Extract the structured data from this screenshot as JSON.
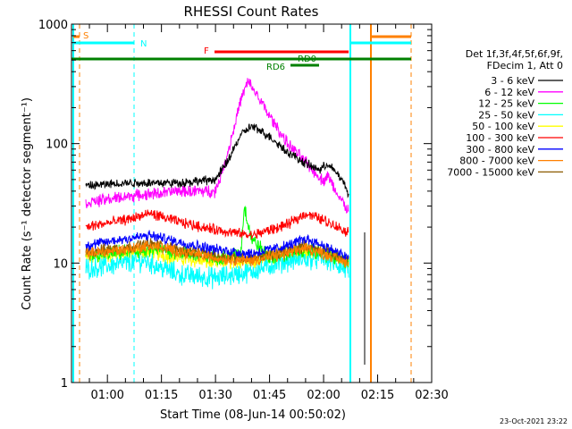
{
  "chart_data": {
    "type": "line",
    "title": "RHESSI Count Rates",
    "xlabel": "Start Time (08-Jun-14 00:50:02)",
    "ylabel": "Count Rate (s⁻¹ detector segment⁻¹)",
    "yscale": "log",
    "ylim": [
      1,
      1000
    ],
    "xlim_minutes": [
      0,
      100
    ],
    "x_tick_labels": [
      "01:00",
      "01:15",
      "01:30",
      "01:45",
      "02:00",
      "02:15",
      "02:30"
    ],
    "y_tick_labels": [
      "1",
      "10",
      "100",
      "1000"
    ],
    "legend_header": [
      "Det 1f,3f,4f,5f,6f,9f,",
      "FDecim 1, Att 0"
    ],
    "legend_placement": "right",
    "timestamp": "23-Oct-2021 23:22",
    "series": [
      {
        "name": "3 - 6 keV",
        "color": "#000000",
        "x": [
          "00:54",
          "01:05",
          "01:20",
          "01:30",
          "01:33",
          "01:37",
          "01:40",
          "01:45",
          "01:50",
          "01:55",
          "01:59",
          "02:01",
          "02:04",
          "02:06",
          "02:07"
        ],
        "y": [
          44,
          47,
          47,
          50,
          68,
          118,
          140,
          115,
          85,
          68,
          60,
          68,
          55,
          45,
          36
        ]
      },
      {
        "name": "6 - 12 keV",
        "color": "#ff00ff",
        "x": [
          "00:54",
          "01:05",
          "01:20",
          "01:30",
          "01:33",
          "01:37",
          "01:39",
          "01:41",
          "01:45",
          "01:50",
          "01:55",
          "02:00",
          "02:01",
          "02:03",
          "02:06",
          "02:07"
        ],
        "y": [
          32,
          36,
          40,
          40,
          75,
          230,
          330,
          270,
          170,
          100,
          70,
          48,
          55,
          42,
          30,
          27
        ]
      },
      {
        "name": "12 - 25 keV",
        "color": "#00ff00",
        "x": [
          "00:54",
          "01:00",
          "01:15",
          "01:30",
          "01:37",
          "01:38",
          "01:40",
          "01:45",
          "01:55",
          "02:00",
          "02:07"
        ],
        "y": [
          11,
          12,
          13,
          11,
          12,
          30,
          16,
          11,
          13,
          12,
          10
        ]
      },
      {
        "name": "25 - 50 keV",
        "color": "#00ffff",
        "x": [
          "00:54",
          "01:00",
          "01:10",
          "01:20",
          "01:30",
          "01:40",
          "01:50",
          "02:00",
          "02:07"
        ],
        "y": [
          9,
          9.5,
          10.5,
          8,
          7.5,
          8.5,
          10.5,
          11,
          8.5
        ]
      },
      {
        "name": "50 - 100 keV",
        "color": "#ffff00",
        "x": [
          "00:54",
          "01:10",
          "01:20",
          "01:30",
          "01:40",
          "01:50",
          "02:00",
          "02:07"
        ],
        "y": [
          11,
          12.5,
          11,
          10,
          10.5,
          12,
          12.5,
          10
        ]
      },
      {
        "name": "100 - 300 keV",
        "color": "#ff0000",
        "x": [
          "00:54",
          "01:05",
          "01:12",
          "01:20",
          "01:30",
          "01:40",
          "01:50",
          "01:55",
          "02:00",
          "02:07"
        ],
        "y": [
          20,
          23,
          26,
          22,
          19,
          17,
          21,
          26,
          23,
          18
        ]
      },
      {
        "name": "300 - 800 keV",
        "color": "#0000ff",
        "x": [
          "00:54",
          "01:05",
          "01:12",
          "01:20",
          "01:30",
          "01:40",
          "01:50",
          "01:55",
          "02:00",
          "02:07"
        ],
        "y": [
          14,
          16,
          17,
          15,
          13,
          12,
          14,
          16,
          14,
          11
        ]
      },
      {
        "name": "800 - 7000 keV",
        "color": "#ff8000",
        "x": [
          "00:54",
          "01:05",
          "01:12",
          "01:20",
          "01:30",
          "01:40",
          "01:50",
          "01:55",
          "02:00",
          "02:07"
        ],
        "y": [
          12,
          13,
          14,
          12.5,
          11,
          10.5,
          12,
          13.5,
          12,
          10
        ]
      },
      {
        "name": "7000 - 15000 keV",
        "color": "#8b5a00",
        "x": [
          "00:54",
          "01:05",
          "01:12",
          "01:20",
          "01:30",
          "01:40",
          "01:50",
          "01:55",
          "02:00",
          "02:07"
        ],
        "y": [
          12.5,
          13.5,
          14.5,
          13,
          11.5,
          11,
          12.5,
          14,
          12.5,
          10.5
        ]
      }
    ],
    "annotations": [
      {
        "label": "S",
        "color": "#ff8000"
      },
      {
        "label": "N",
        "color": "#00ffff"
      },
      {
        "label": "F",
        "color": "#ff0000"
      },
      {
        "label": "RD0",
        "color": "#008000"
      },
      {
        "label": "RD6",
        "color": "#008000"
      }
    ]
  }
}
